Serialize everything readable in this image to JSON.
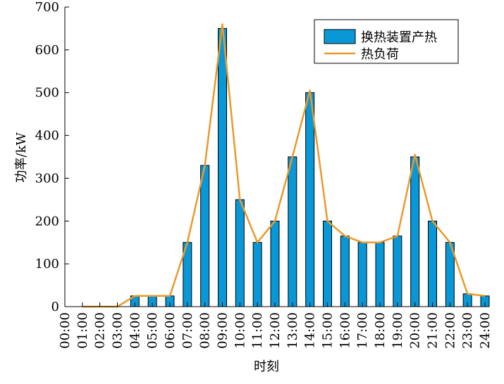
{
  "chart_data": {
    "type": "bar",
    "xlabel": "时刻",
    "ylabel": "功率/kW",
    "ylim": [
      0,
      700
    ],
    "yticks": [
      0,
      100,
      200,
      300,
      400,
      500,
      600,
      700
    ],
    "xticks": [
      "00:00",
      "01:00",
      "02:00",
      "03:00",
      "04:00",
      "05:00",
      "06:00",
      "07:00",
      "08:00",
      "09:00",
      "10:00",
      "11:00",
      "12:00",
      "13:00",
      "14:00",
      "15:00",
      "16:00",
      "17:00",
      "18:00",
      "19:00",
      "20:00",
      "21:00",
      "22:00",
      "23:00",
      "24:00"
    ],
    "categories": [
      "01:00",
      "02:00",
      "03:00",
      "04:00",
      "05:00",
      "06:00",
      "07:00",
      "08:00",
      "09:00",
      "10:00",
      "11:00",
      "12:00",
      "13:00",
      "14:00",
      "15:00",
      "16:00",
      "17:00",
      "18:00",
      "19:00",
      "20:00",
      "21:00",
      "22:00",
      "23:00",
      "24:00"
    ],
    "legend_position": "top-right",
    "grid": false,
    "series": [
      {
        "name": "换热装置产热",
        "kind": "bar",
        "color": "#0898D8",
        "values": [
          0,
          0,
          0,
          25,
          25,
          25,
          150,
          330,
          650,
          250,
          150,
          200,
          350,
          500,
          200,
          165,
          150,
          150,
          165,
          350,
          200,
          150,
          30,
          25
        ]
      },
      {
        "name": "热负荷",
        "kind": "line",
        "color": "#E89A2C",
        "values": [
          0,
          0,
          0,
          25,
          25,
          25,
          150,
          330,
          660,
          250,
          150,
          200,
          350,
          505,
          200,
          165,
          150,
          150,
          165,
          355,
          200,
          150,
          30,
          25
        ]
      }
    ]
  }
}
